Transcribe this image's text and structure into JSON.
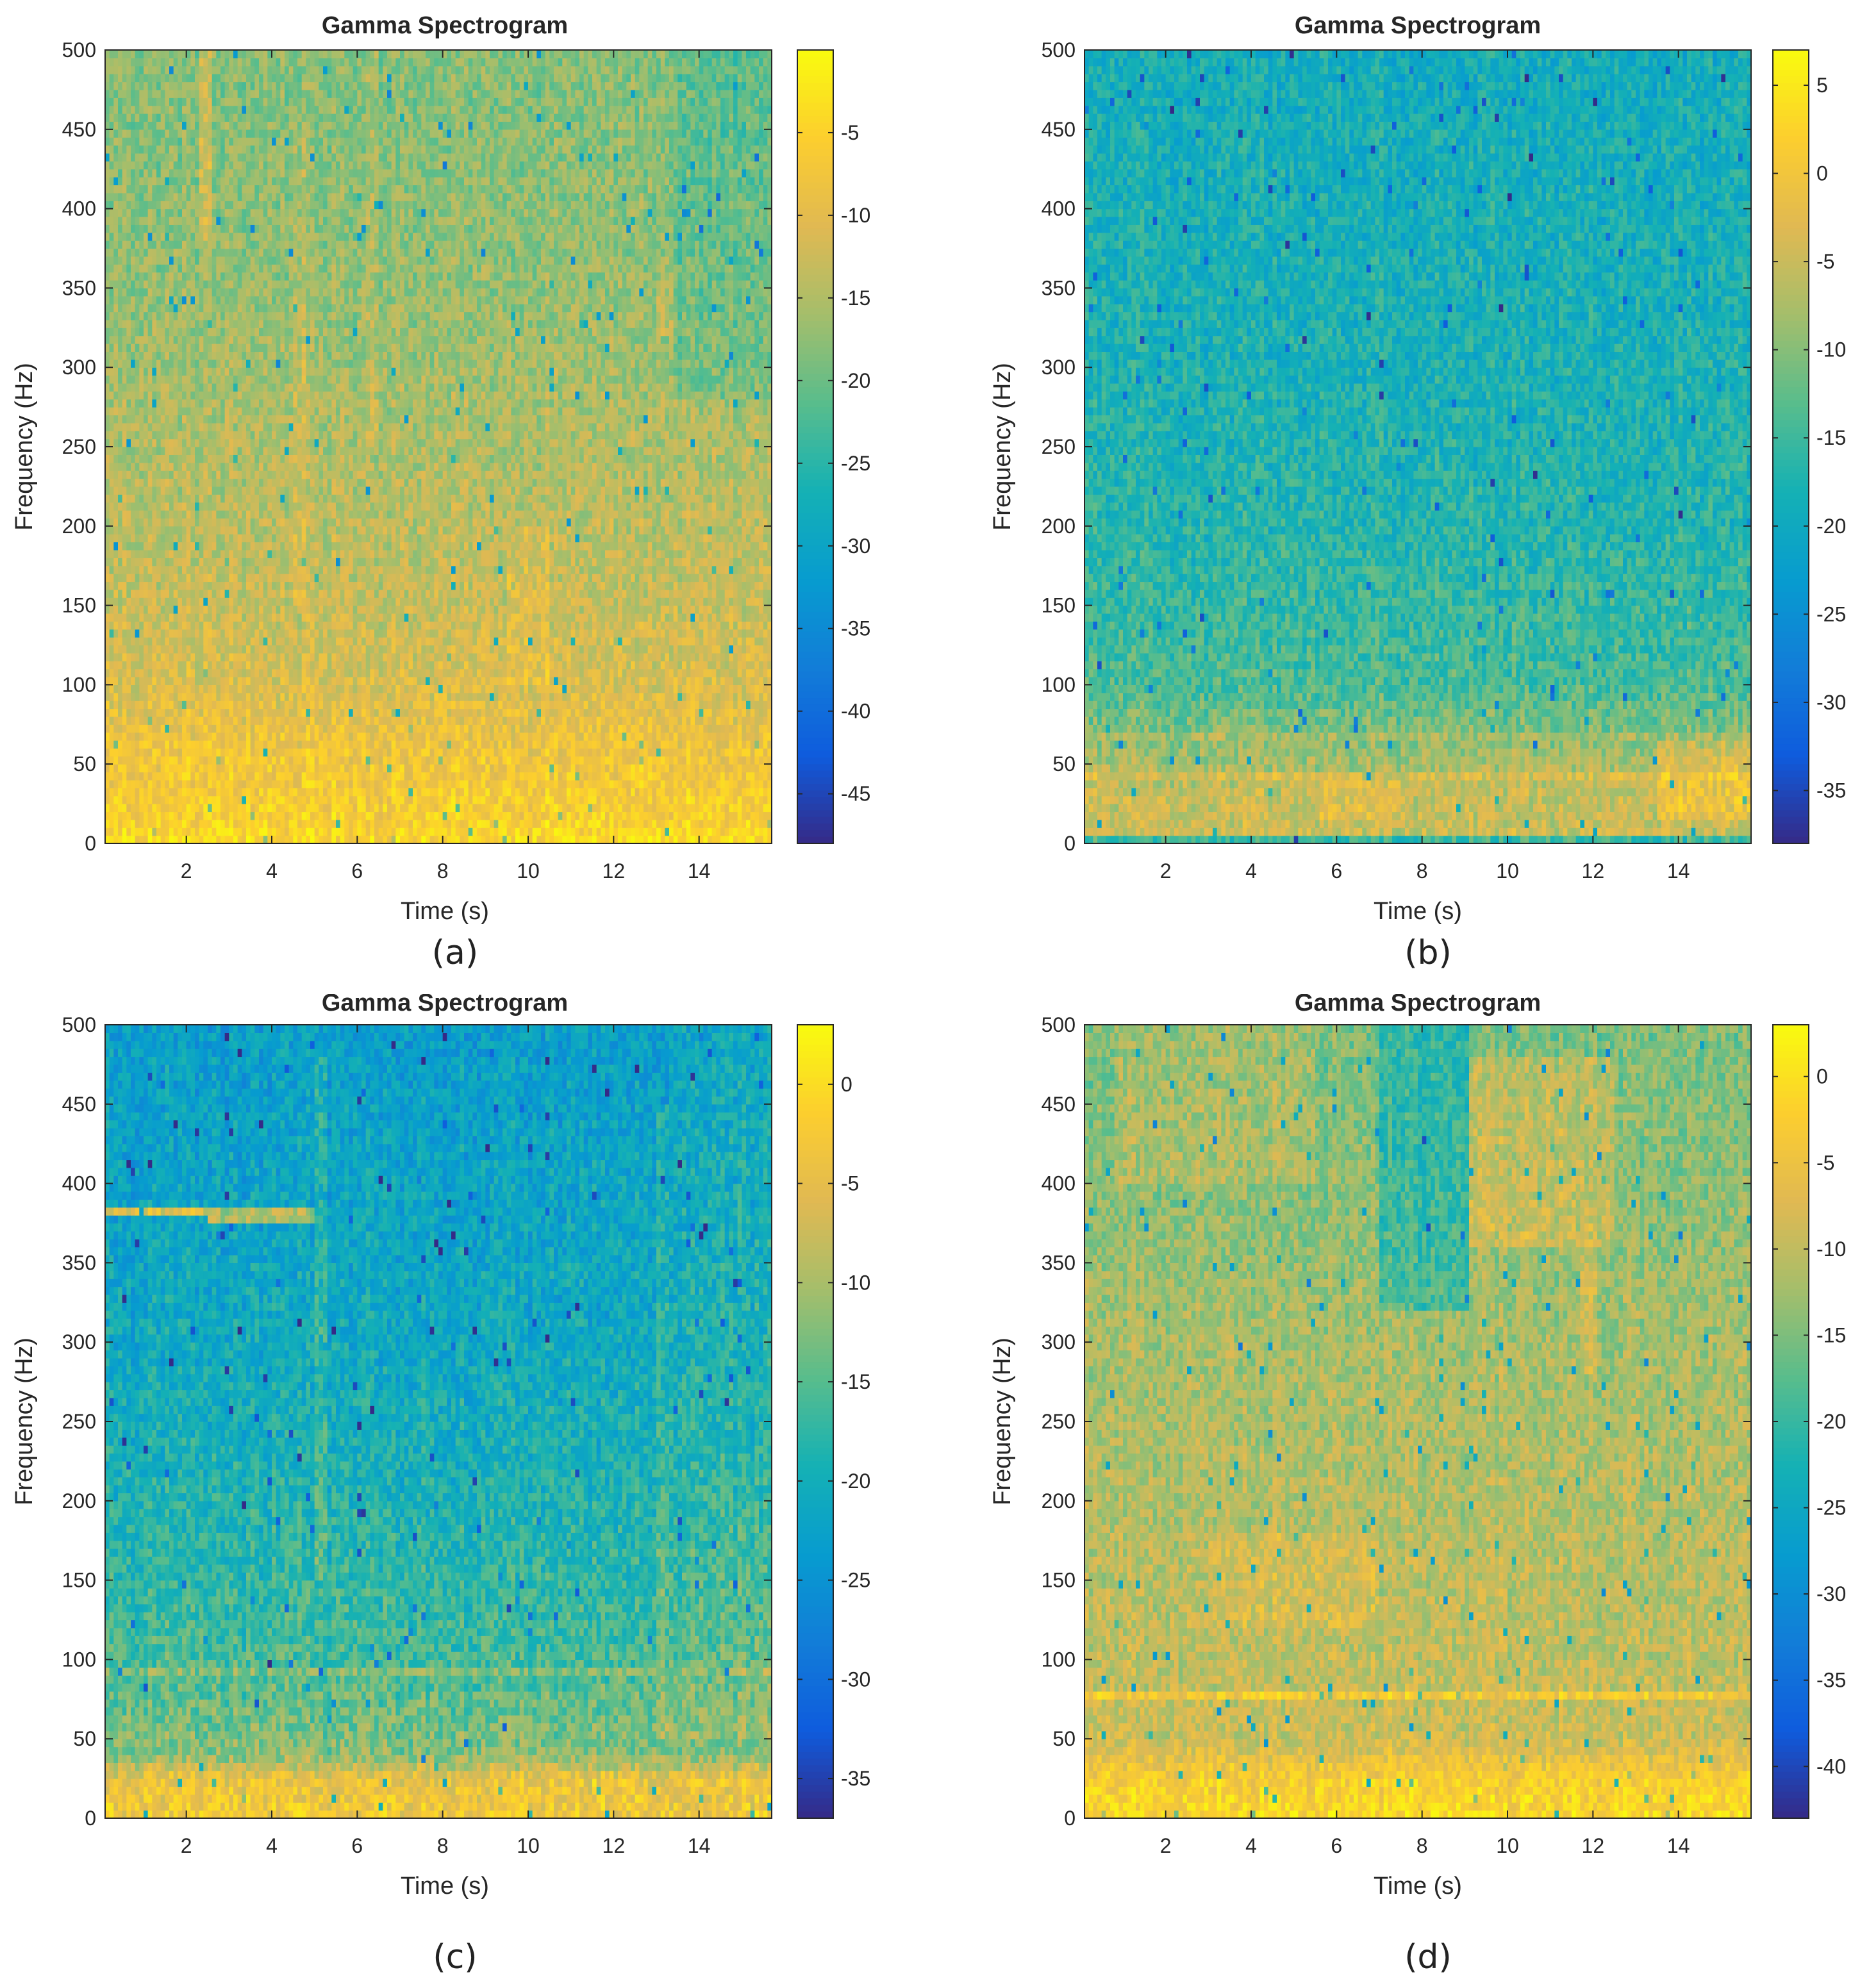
{
  "chart_data": [
    {
      "type": "heatmap",
      "panel_label": "(a)",
      "title": "Gamma Spectrogram",
      "xlabel": "Time (s)",
      "ylabel": "Frequency (Hz)",
      "xlim": [
        0.1,
        15.7
      ],
      "ylim": [
        0,
        500
      ],
      "xticks": [
        2,
        4,
        6,
        8,
        10,
        12,
        14
      ],
      "yticks": [
        0,
        50,
        100,
        150,
        200,
        250,
        300,
        350,
        400,
        450,
        500
      ],
      "colorbar": {
        "min": -48,
        "max": 0,
        "ticks": [
          -5,
          -10,
          -15,
          -20,
          -25,
          -30,
          -35,
          -40,
          -45
        ]
      },
      "colormap": "parula",
      "grid": false,
      "features": {
        "base_db": -17,
        "freq_profile": [
          [
            0,
            -4
          ],
          [
            20,
            -6
          ],
          [
            60,
            -8
          ],
          [
            100,
            -11
          ],
          [
            150,
            -13
          ],
          [
            250,
            -15
          ],
          [
            350,
            -17
          ],
          [
            450,
            -18
          ],
          [
            500,
            -18
          ]
        ],
        "events": [
          {
            "t_start": 2.3,
            "t_end": 2.6,
            "f_start": 380,
            "f_end": 500,
            "db": 6
          },
          {
            "t_start": 4.5,
            "t_end": 4.8,
            "f_start": 150,
            "f_end": 450,
            "db": 3
          },
          {
            "t_start": 6.2,
            "t_end": 6.5,
            "f_start": 250,
            "f_end": 500,
            "db": 3
          },
          {
            "t_start": 9.5,
            "t_end": 10.5,
            "f_start": 100,
            "f_end": 200,
            "db": 3
          },
          {
            "t_start": 13,
            "t_end": 13.4,
            "f_start": 320,
            "f_end": 370,
            "db": 3
          }
        ],
        "dips": [
          {
            "t_start": 13.4,
            "t_end": 15.7,
            "f_start": 280,
            "f_end": 500,
            "db": -3
          }
        ]
      }
    },
    {
      "type": "heatmap",
      "panel_label": "(b)",
      "title": "Gamma Spectrogram",
      "xlabel": "Time (s)",
      "ylabel": "Frequency (Hz)",
      "xlim": [
        0.1,
        15.7
      ],
      "ylim": [
        0,
        500
      ],
      "xticks": [
        2,
        4,
        6,
        8,
        10,
        12,
        14
      ],
      "yticks": [
        0,
        50,
        100,
        150,
        200,
        250,
        300,
        350,
        400,
        450,
        500
      ],
      "colorbar": {
        "min": -38,
        "max": 7,
        "ticks": [
          5,
          0,
          -5,
          -10,
          -15,
          -20,
          -25,
          -30,
          -35
        ]
      },
      "colormap": "parula",
      "grid": false,
      "features": {
        "base_db": -18,
        "freq_profile": [
          [
            0,
            -5
          ],
          [
            30,
            -5
          ],
          [
            60,
            -9
          ],
          [
            100,
            -14
          ],
          [
            200,
            -17
          ],
          [
            300,
            -18
          ],
          [
            500,
            -19
          ]
        ],
        "events": [
          {
            "t_start": 5.5,
            "t_end": 7.8,
            "f_start": 15,
            "f_end": 40,
            "db": 3
          },
          {
            "t_start": 13.5,
            "t_end": 15.7,
            "f_start": 15,
            "f_end": 65,
            "db": 5
          }
        ],
        "lines": [
          {
            "f": 42,
            "t_start": 0.1,
            "t_end": 15.7,
            "db": 3
          },
          {
            "f": 68,
            "t_start": 0.1,
            "t_end": 15.7,
            "db": 2
          }
        ],
        "dips": [
          {
            "t_start": 0.1,
            "t_end": 15.7,
            "f_start": 0,
            "f_end": 5,
            "db": -10
          }
        ]
      }
    },
    {
      "type": "heatmap",
      "panel_label": "(c)",
      "title": "Gamma Spectrogram",
      "xlabel": "Time (s)",
      "ylabel": "Frequency (Hz)",
      "xlim": [
        0.1,
        15.7
      ],
      "ylim": [
        0,
        500
      ],
      "xticks": [
        2,
        4,
        6,
        8,
        10,
        12,
        14
      ],
      "yticks": [
        0,
        50,
        100,
        150,
        200,
        250,
        300,
        350,
        400,
        450,
        500
      ],
      "colorbar": {
        "min": -37,
        "max": 3,
        "ticks": [
          0,
          -5,
          -10,
          -15,
          -20,
          -25,
          -30,
          -35
        ]
      },
      "colormap": "parula",
      "grid": false,
      "features": {
        "base_db": -20,
        "freq_profile": [
          [
            0,
            -3
          ],
          [
            25,
            -4
          ],
          [
            40,
            -12
          ],
          [
            100,
            -16
          ],
          [
            200,
            -19
          ],
          [
            300,
            -21
          ],
          [
            400,
            -22
          ],
          [
            500,
            -23
          ]
        ],
        "events": [
          {
            "t_start": 5,
            "t_end": 5.3,
            "f_start": 150,
            "f_end": 480,
            "db": 4
          },
          {
            "t_start": 13,
            "t_end": 13.3,
            "f_start": 50,
            "f_end": 450,
            "db": 4
          },
          {
            "t_start": 13.3,
            "t_end": 15.7,
            "f_start": 50,
            "f_end": 500,
            "db": 2
          }
        ],
        "lines": [
          {
            "f": 382,
            "t_start": 0.1,
            "t_end": 2.5,
            "db": 16
          },
          {
            "f": 380,
            "t_start": 2.5,
            "t_end": 5,
            "db": 12
          },
          {
            "f": 92,
            "t_start": 0.1,
            "t_end": 15.7,
            "db": 3
          }
        ],
        "dips": []
      }
    },
    {
      "type": "heatmap",
      "panel_label": "(d)",
      "title": "Gamma Spectrogram",
      "xlabel": "Time (s)",
      "ylabel": "Frequency (Hz)",
      "xlim": [
        0.1,
        15.7
      ],
      "ylim": [
        0,
        500
      ],
      "xticks": [
        2,
        4,
        6,
        8,
        10,
        12,
        14
      ],
      "yticks": [
        0,
        50,
        100,
        150,
        200,
        250,
        300,
        350,
        400,
        450,
        500
      ],
      "colorbar": {
        "min": -43,
        "max": 3,
        "ticks": [
          0,
          -5,
          -10,
          -15,
          -20,
          -25,
          -30,
          -35,
          -40
        ]
      },
      "colormap": "parula",
      "grid": false,
      "features": {
        "base_db": -15,
        "freq_profile": [
          [
            0,
            -1
          ],
          [
            25,
            -3
          ],
          [
            50,
            -9
          ],
          [
            100,
            -10
          ],
          [
            200,
            -11
          ],
          [
            300,
            -12
          ],
          [
            400,
            -14
          ],
          [
            500,
            -15
          ]
        ],
        "events": [
          {
            "t_start": 0.8,
            "t_end": 5.5,
            "f_start": 400,
            "f_end": 500,
            "db": 3
          },
          {
            "t_start": 9.1,
            "t_end": 12.5,
            "f_start": 360,
            "f_end": 480,
            "db": 5
          },
          {
            "t_start": 11.7,
            "t_end": 12.1,
            "f_start": 280,
            "f_end": 360,
            "db": 4
          },
          {
            "t_start": 3,
            "t_end": 7,
            "f_start": 120,
            "f_end": 180,
            "db": 3
          }
        ],
        "lines": [
          {
            "f": 78,
            "t_start": 0.1,
            "t_end": 15.7,
            "db": 6
          }
        ],
        "dips": [
          {
            "t_start": 7,
            "t_end": 9.1,
            "f_start": 320,
            "f_end": 500,
            "db": -6
          }
        ]
      }
    }
  ]
}
